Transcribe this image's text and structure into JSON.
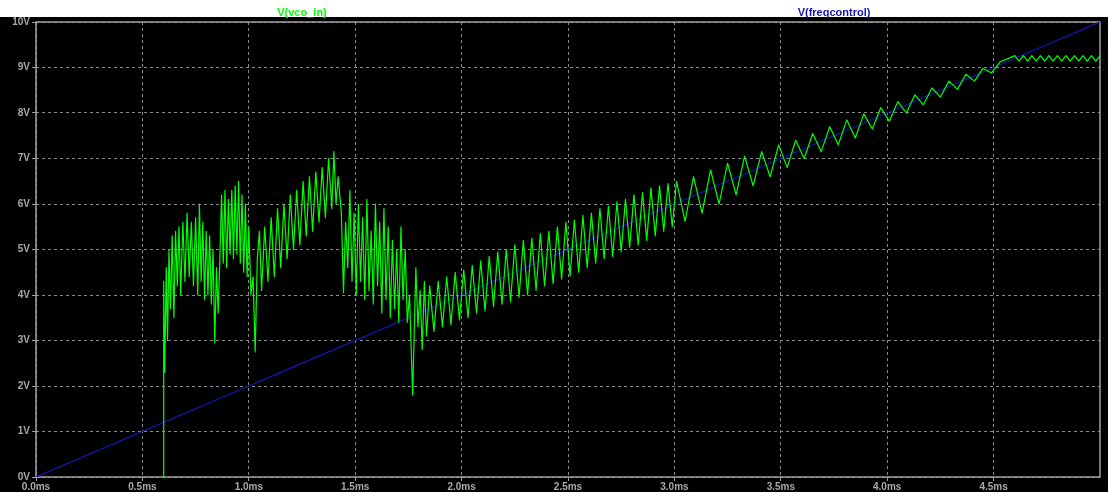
{
  "chart_data": {
    "type": "line",
    "xlim": [
      0,
      5
    ],
    "ylim": [
      0,
      10
    ],
    "xticks": [
      {
        "value": 0,
        "label": "0.0ms"
      },
      {
        "value": 0.5,
        "label": "0.5ms"
      },
      {
        "value": 1,
        "label": "1.0ms"
      },
      {
        "value": 1.5,
        "label": "1.5ms"
      },
      {
        "value": 2,
        "label": "2.0ms"
      },
      {
        "value": 2.5,
        "label": "2.5ms"
      },
      {
        "value": 3,
        "label": "3.0ms"
      },
      {
        "value": 3.5,
        "label": "3.5ms"
      },
      {
        "value": 4,
        "label": "4.0ms"
      },
      {
        "value": 4.5,
        "label": "4.5ms"
      }
    ],
    "yticks": [
      {
        "value": 0,
        "label": "0V"
      },
      {
        "value": 1,
        "label": "1V"
      },
      {
        "value": 2,
        "label": "2V"
      },
      {
        "value": 3,
        "label": "3V"
      },
      {
        "value": 4,
        "label": "4V"
      },
      {
        "value": 5,
        "label": "5V"
      },
      {
        "value": 6,
        "label": "6V"
      },
      {
        "value": 7,
        "label": "7V"
      },
      {
        "value": 8,
        "label": "8V"
      },
      {
        "value": 9,
        "label": "9V"
      },
      {
        "value": 10,
        "label": "10V"
      }
    ],
    "grid": true,
    "legend": "top",
    "marker": "none",
    "line_style": "solid",
    "series": [
      {
        "name": "V(vco_in)",
        "color": "#00ff00",
        "x": [
          0.59,
          0.598,
          0.6,
          0.605,
          0.612,
          0.618,
          0.625,
          0.632,
          0.64,
          0.648,
          0.656,
          0.664,
          0.672,
          0.68,
          0.69,
          0.7,
          0.71,
          0.72,
          0.73,
          0.74,
          0.75,
          0.76,
          0.768,
          0.776,
          0.784,
          0.792,
          0.8,
          0.808,
          0.816,
          0.824,
          0.832,
          0.84,
          0.848,
          0.856,
          0.864,
          0.872,
          0.88,
          0.888,
          0.896,
          0.904,
          0.912,
          0.92,
          0.928,
          0.936,
          0.944,
          0.952,
          0.96,
          0.968,
          0.976,
          0.984,
          0.992,
          1.0,
          1.01,
          1.02,
          1.03,
          1.04,
          1.05,
          1.06,
          1.075,
          1.09,
          1.105,
          1.12,
          1.135,
          1.15,
          1.165,
          1.18,
          1.195,
          1.21,
          1.225,
          1.24,
          1.255,
          1.27,
          1.285,
          1.3,
          1.315,
          1.33,
          1.345,
          1.36,
          1.375,
          1.39,
          1.4,
          1.41,
          1.42,
          1.435,
          1.445,
          1.455,
          1.465,
          1.475,
          1.485,
          1.495,
          1.505,
          1.515,
          1.525,
          1.535,
          1.545,
          1.555,
          1.565,
          1.575,
          1.585,
          1.595,
          1.605,
          1.615,
          1.625,
          1.635,
          1.645,
          1.655,
          1.665,
          1.675,
          1.685,
          1.695,
          1.705,
          1.715,
          1.725,
          1.735,
          1.745,
          1.755,
          1.77,
          1.785,
          1.795,
          1.805,
          1.815,
          1.825,
          1.835,
          1.85,
          1.87,
          1.89,
          1.91,
          1.93,
          1.95,
          1.97,
          1.99,
          2.01,
          2.03,
          2.05,
          2.07,
          2.09,
          2.11,
          2.13,
          2.15,
          2.17,
          2.19,
          2.21,
          2.23,
          2.25,
          2.27,
          2.29,
          2.31,
          2.33,
          2.35,
          2.37,
          2.39,
          2.41,
          2.43,
          2.45,
          2.47,
          2.49,
          2.51,
          2.53,
          2.55,
          2.57,
          2.59,
          2.61,
          2.63,
          2.65,
          2.67,
          2.69,
          2.71,
          2.73,
          2.75,
          2.77,
          2.79,
          2.81,
          2.83,
          2.85,
          2.87,
          2.89,
          2.91,
          2.93,
          2.95,
          2.97,
          2.99,
          3.01,
          3.05,
          3.09,
          3.13,
          3.17,
          3.21,
          3.25,
          3.29,
          3.33,
          3.37,
          3.41,
          3.45,
          3.49,
          3.53,
          3.57,
          3.61,
          3.65,
          3.69,
          3.73,
          3.77,
          3.81,
          3.85,
          3.89,
          3.93,
          3.97,
          4.01,
          4.05,
          4.09,
          4.13,
          4.17,
          4.21,
          4.25,
          4.29,
          4.33,
          4.37,
          4.41,
          4.45,
          4.49,
          4.53,
          4.57,
          4.6,
          4.62,
          4.64,
          4.66,
          4.68,
          4.7,
          4.72,
          4.74,
          4.76,
          4.78,
          4.8,
          4.82,
          4.84,
          4.86,
          4.88,
          4.9,
          4.92,
          4.94,
          4.96,
          4.98,
          5.0
        ],
        "values": [
          0,
          0,
          4.3,
          2.3,
          4.6,
          3.0,
          5.0,
          3.7,
          5.3,
          3.5,
          5.4,
          4.2,
          5.5,
          4.0,
          5.6,
          4.3,
          5.8,
          4.4,
          5.6,
          4.2,
          5.7,
          4.0,
          6.0,
          4.3,
          5.6,
          3.9,
          5.4,
          4.0,
          5.3,
          3.8,
          5.0,
          2.95,
          4.6,
          3.6,
          4.8,
          6.2,
          4.7,
          6.3,
          4.6,
          6.1,
          4.9,
          6.3,
          4.8,
          6.4,
          4.9,
          6.5,
          4.7,
          6.2,
          4.5,
          6.0,
          4.4,
          5.5,
          4.0,
          4.4,
          2.75,
          4.8,
          5.4,
          4.1,
          5.5,
          4.3,
          5.7,
          4.4,
          5.9,
          4.6,
          6.0,
          4.8,
          6.2,
          5.0,
          6.3,
          5.1,
          6.5,
          5.3,
          6.6,
          5.4,
          6.7,
          5.6,
          6.8,
          5.7,
          7.0,
          5.9,
          7.15,
          6.0,
          6.6,
          5.8,
          4.05,
          5.6,
          4.6,
          6.3,
          4.3,
          5.8,
          4.0,
          6.0,
          4.3,
          5.7,
          3.9,
          6.1,
          4.1,
          5.4,
          3.8,
          6.0,
          4.2,
          5.6,
          3.6,
          5.9,
          3.9,
          5.5,
          3.5,
          5.2,
          3.7,
          5.0,
          3.4,
          5.5,
          3.9,
          5.0,
          3.4,
          4.0,
          1.8,
          4.6,
          3.3,
          4.1,
          2.8,
          4.3,
          3.1,
          4.2,
          3.2,
          4.3,
          3.3,
          4.4,
          3.35,
          4.5,
          3.45,
          4.55,
          3.5,
          4.65,
          3.6,
          4.75,
          3.65,
          4.85,
          3.75,
          4.95,
          3.8,
          5.0,
          3.85,
          5.1,
          3.95,
          5.2,
          4.0,
          5.25,
          4.1,
          5.35,
          4.2,
          5.4,
          4.25,
          5.5,
          4.35,
          5.6,
          4.42,
          5.65,
          4.5,
          5.75,
          4.6,
          5.8,
          4.7,
          5.9,
          4.8,
          5.95,
          4.85,
          6.05,
          4.95,
          6.1,
          5.05,
          6.2,
          5.1,
          6.25,
          5.2,
          6.35,
          5.3,
          6.4,
          5.4,
          6.45,
          5.5,
          6.5,
          5.62,
          6.6,
          5.8,
          6.75,
          6.0,
          6.9,
          6.2,
          7.05,
          6.4,
          7.15,
          6.6,
          7.3,
          6.8,
          7.4,
          7.0,
          7.55,
          7.15,
          7.7,
          7.3,
          7.85,
          7.45,
          7.98,
          7.65,
          8.12,
          7.82,
          8.25,
          8.0,
          8.4,
          8.18,
          8.55,
          8.35,
          8.7,
          8.52,
          8.85,
          8.7,
          8.98,
          8.88,
          9.12,
          9.2,
          9.26,
          9.14,
          9.26,
          9.14,
          9.26,
          9.14,
          9.26,
          9.14,
          9.26,
          9.14,
          9.26,
          9.14,
          9.26,
          9.14,
          9.26,
          9.14,
          9.26,
          9.14,
          9.26,
          9.14,
          9.26
        ]
      },
      {
        "name": "V(freqcontrol)",
        "color": "#1414b4",
        "x": [
          0,
          5
        ],
        "values": [
          0,
          10
        ]
      }
    ]
  }
}
